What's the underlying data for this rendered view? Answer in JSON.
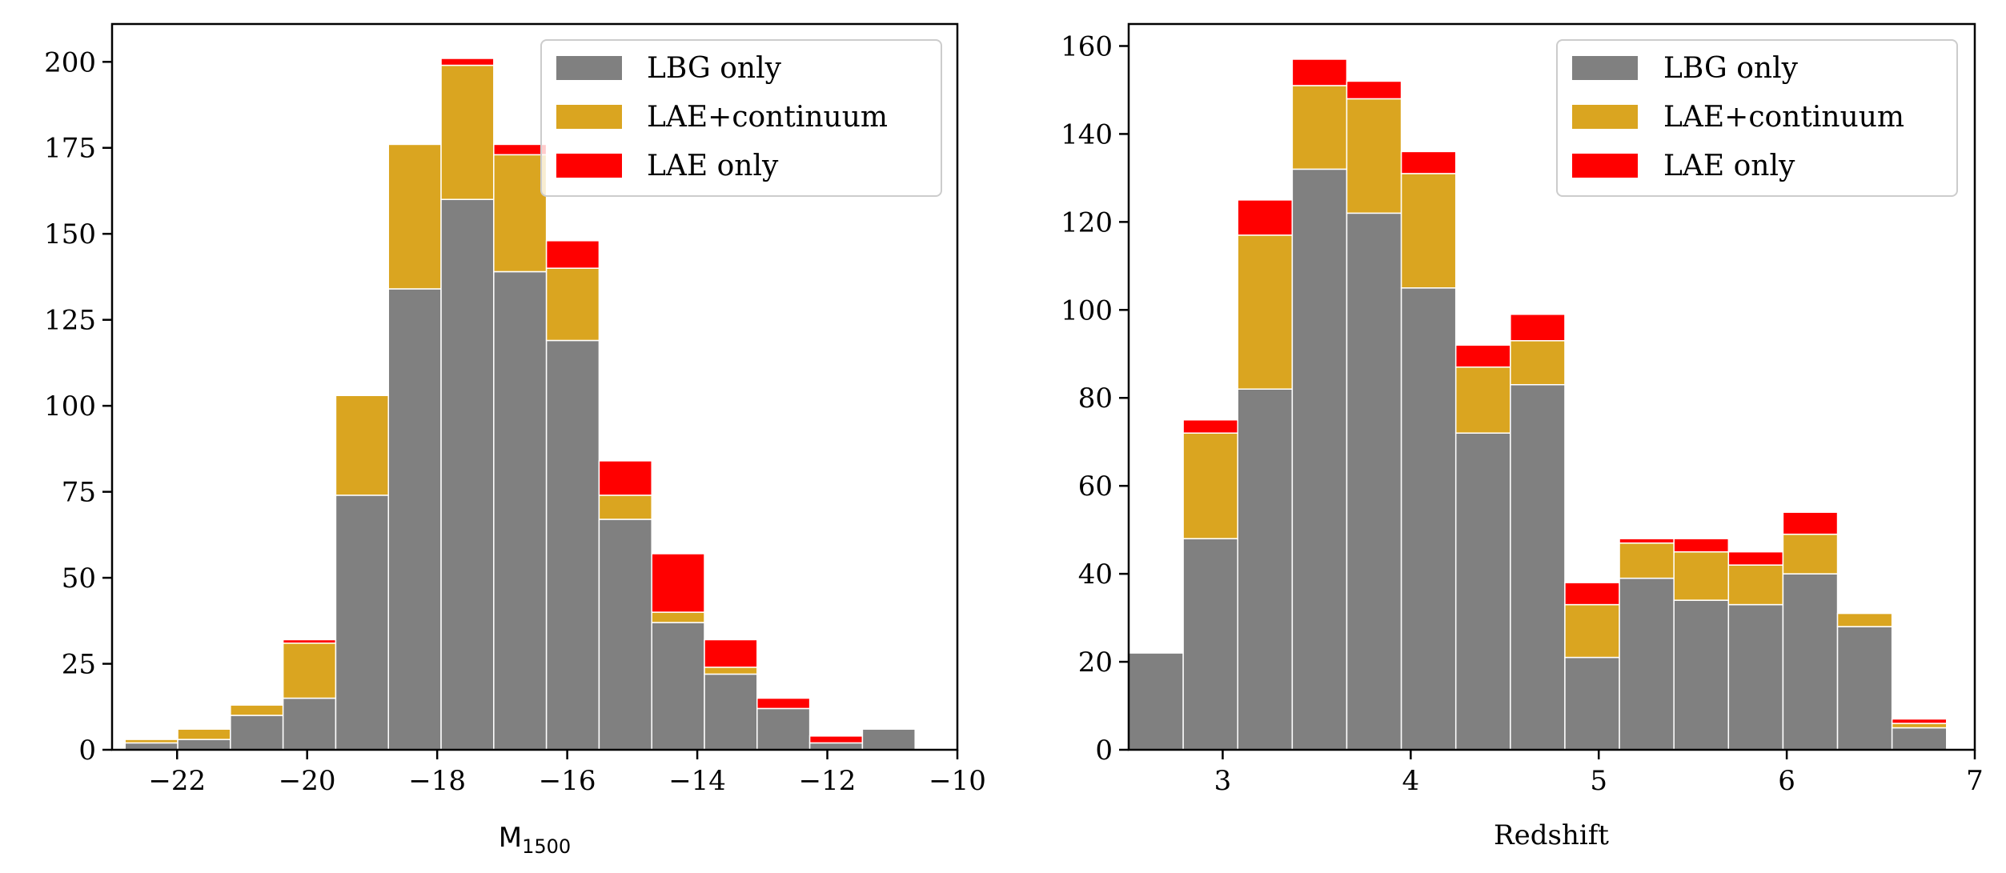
{
  "colors": {
    "lbg_only": "#808080",
    "lae_continuum": "#DAA520",
    "lae_only": "#FF0000"
  },
  "chart_data": [
    {
      "type": "bar",
      "stacked": true,
      "title": "",
      "xlabel_main": "M",
      "xlabel_sub": "1500",
      "ylabel": "",
      "xlim": [
        -23.0,
        -10.0
      ],
      "ylim": [
        0,
        211
      ],
      "xticks": [
        -22,
        -20,
        -18,
        -16,
        -14,
        -12,
        -10
      ],
      "xtick_labels": [
        "−22",
        "−20",
        "−18",
        "−16",
        "−14",
        "−12",
        "−10"
      ],
      "yticks": [
        0,
        25,
        50,
        75,
        100,
        125,
        150,
        175,
        200
      ],
      "ytick_labels": [
        "0",
        "25",
        "50",
        "75",
        "100",
        "125",
        "150",
        "175",
        "200"
      ],
      "legend_position": "top-right",
      "bin_edges": [
        -22.8,
        -21.99,
        -21.18,
        -20.37,
        -19.56,
        -18.75,
        -17.94,
        -17.13,
        -16.32,
        -15.51,
        -14.7,
        -13.89,
        -13.08,
        -12.27,
        -11.46,
        -10.65
      ],
      "series": [
        {
          "name": "LBG only",
          "values": [
            2,
            3,
            10,
            15,
            74,
            134,
            160,
            139,
            119,
            67,
            37,
            22,
            12,
            2,
            6
          ]
        },
        {
          "name": "LAE+continuum",
          "values": [
            1,
            3,
            3,
            16,
            29,
            42,
            39,
            34,
            21,
            7,
            3,
            2,
            0,
            0,
            0
          ]
        },
        {
          "name": "LAE only",
          "values": [
            0,
            0,
            0,
            1,
            0,
            0,
            2,
            3,
            8,
            10,
            17,
            8,
            3,
            2,
            0
          ]
        }
      ]
    },
    {
      "type": "bar",
      "stacked": true,
      "title": "",
      "xlabel": "Redshift",
      "ylabel": "",
      "xlim": [
        2.5,
        7.0
      ],
      "ylim": [
        0,
        165
      ],
      "xticks": [
        3,
        4,
        5,
        6,
        7
      ],
      "xtick_labels": [
        "3",
        "4",
        "5",
        "6",
        "7"
      ],
      "yticks": [
        0,
        20,
        40,
        60,
        80,
        100,
        120,
        140,
        160
      ],
      "ytick_labels": [
        "0",
        "20",
        "40",
        "60",
        "80",
        "100",
        "120",
        "140",
        "160"
      ],
      "legend_position": "top-right",
      "bin_edges": [
        2.5,
        2.79,
        3.08,
        3.37,
        3.66,
        3.95,
        4.24,
        4.53,
        4.82,
        5.11,
        5.4,
        5.69,
        5.98,
        6.27,
        6.56,
        6.85
      ],
      "series": [
        {
          "name": "LBG only",
          "values": [
            22,
            48,
            82,
            132,
            122,
            105,
            72,
            83,
            21,
            39,
            34,
            33,
            40,
            28,
            5
          ]
        },
        {
          "name": "LAE+continuum",
          "values": [
            0,
            24,
            35,
            19,
            26,
            26,
            15,
            10,
            12,
            8,
            11,
            9,
            9,
            3,
            1
          ]
        },
        {
          "name": "LAE only",
          "values": [
            0,
            3,
            8,
            6,
            4,
            5,
            5,
            6,
            5,
            1,
            3,
            3,
            5,
            0,
            1
          ]
        }
      ]
    }
  ]
}
